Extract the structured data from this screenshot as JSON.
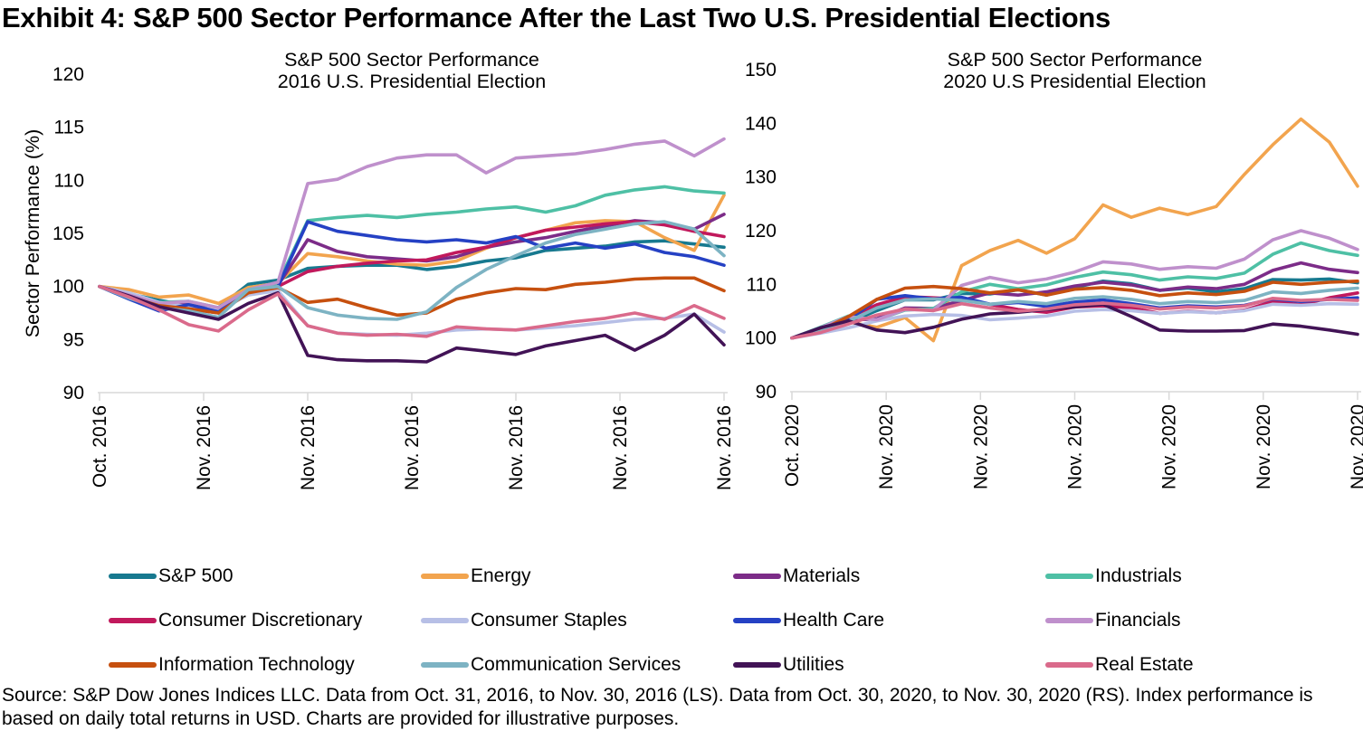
{
  "title": "Exhibit 4: S&P 500 Sector Performance After the Last Two U.S. Presidential Elections",
  "source_note": "Source: S&P Dow Jones Indices LLC. Data from Oct. 31, 2016, to Nov. 30, 2016 (LS). Data from Oct. 30, 2020, to Nov. 30, 2020 (RS). Index performance is based on daily total returns in USD. Charts are provided for illustrative purposes.",
  "legend": {
    "items": [
      {
        "label": "S&P 500",
        "color": "#17798f"
      },
      {
        "label": "Energy",
        "color": "#f2a44e"
      },
      {
        "label": "Materials",
        "color": "#7c2c88"
      },
      {
        "label": "Industrials",
        "color": "#4ec0a5"
      },
      {
        "label": "Consumer Discretionary",
        "color": "#c1195c"
      },
      {
        "label": "Consumer Staples",
        "color": "#b7bfe6"
      },
      {
        "label": "Health Care",
        "color": "#2541c4"
      },
      {
        "label": "Financials",
        "color": "#bf90cc"
      },
      {
        "label": "Information Technology",
        "color": "#c6500f"
      },
      {
        "label": "Communication Services",
        "color": "#7db3c3"
      },
      {
        "label": "Utilities",
        "color": "#421356"
      },
      {
        "label": "Real Estate",
        "color": "#da6a8b"
      }
    ]
  },
  "chart_data": [
    {
      "type": "line",
      "title": "S&P 500 Sector Performance",
      "subtitle": "2016 U.S. Presidential Election",
      "ylabel": "Sector Performance (%)",
      "ylim": [
        90,
        120
      ],
      "y_ticks": [
        120,
        115,
        110,
        105,
        100,
        95,
        90
      ],
      "x_tick_labels": [
        "Oct. 2016",
        "Nov. 2016",
        "Nov. 2016",
        "Nov. 2016",
        "Nov. 2016",
        "Nov. 2016",
        "Nov. 2016"
      ],
      "grid": false,
      "series": [
        {
          "name": "S&P 500",
          "color": "#17798f",
          "values": [
            100,
            99.3,
            98.7,
            98.2,
            98.0,
            100.2,
            100.6,
            101.7,
            101.9,
            102.0,
            102.0,
            101.6,
            101.9,
            102.4,
            102.7,
            103.4,
            103.6,
            103.8,
            104.2,
            104.3,
            104.0,
            103.7
          ]
        },
        {
          "name": "Energy",
          "color": "#f2a44e",
          "values": [
            100,
            99.7,
            99.0,
            99.2,
            98.4,
            99.9,
            100.3,
            103.1,
            102.8,
            102.4,
            102.1,
            102.0,
            102.4,
            103.6,
            104.6,
            105.3,
            106.0,
            106.2,
            106.1,
            104.6,
            103.4,
            108.6
          ]
        },
        {
          "name": "Materials",
          "color": "#7c2c88",
          "values": [
            100,
            99.0,
            98.2,
            98.4,
            97.8,
            99.4,
            100.1,
            104.4,
            103.3,
            102.8,
            102.6,
            102.4,
            102.8,
            103.7,
            104.2,
            104.6,
            105.2,
            105.7,
            106.2,
            106.0,
            105.4,
            106.8
          ]
        },
        {
          "name": "Industrials",
          "color": "#4ec0a5",
          "values": [
            100,
            99.2,
            98.5,
            98.6,
            98.0,
            99.7,
            100.3,
            106.2,
            106.5,
            106.7,
            106.5,
            106.8,
            107.0,
            107.3,
            107.5,
            107.0,
            107.6,
            108.6,
            109.1,
            109.4,
            109.0,
            108.8
          ]
        },
        {
          "name": "Consumer Discretionary",
          "color": "#c1195c",
          "values": [
            100,
            99.2,
            98.3,
            97.9,
            97.5,
            99.4,
            100.0,
            101.4,
            101.9,
            102.2,
            102.4,
            102.5,
            103.2,
            103.7,
            104.6,
            105.3,
            105.6,
            105.9,
            106.1,
            105.8,
            105.2,
            104.7
          ]
        },
        {
          "name": "Consumer Staples",
          "color": "#b7bfe6",
          "values": [
            100,
            99.4,
            98.5,
            98.1,
            97.8,
            99.2,
            99.6,
            96.3,
            95.6,
            95.5,
            95.4,
            95.6,
            95.9,
            96.0,
            95.9,
            96.1,
            96.3,
            96.6,
            96.9,
            97.0,
            97.4,
            95.7
          ]
        },
        {
          "name": "Health Care",
          "color": "#2541c4",
          "values": [
            100,
            98.8,
            97.7,
            98.3,
            97.6,
            99.6,
            100.0,
            106.1,
            105.2,
            104.8,
            104.4,
            104.2,
            104.4,
            104.1,
            104.7,
            103.6,
            104.1,
            103.6,
            104.0,
            103.2,
            102.8,
            102.0
          ]
        },
        {
          "name": "Financials",
          "color": "#bf90cc",
          "values": [
            100,
            99.2,
            98.4,
            98.6,
            98.0,
            99.7,
            100.4,
            109.7,
            110.1,
            111.3,
            112.1,
            112.4,
            112.4,
            110.7,
            112.1,
            112.3,
            112.5,
            112.9,
            113.4,
            113.7,
            112.3,
            113.9
          ]
        },
        {
          "name": "Information Technology",
          "color": "#c6500f",
          "values": [
            100,
            99.0,
            98.2,
            97.9,
            97.5,
            99.4,
            99.9,
            98.5,
            98.8,
            98.0,
            97.3,
            97.5,
            98.8,
            99.4,
            99.8,
            99.7,
            100.2,
            100.4,
            100.7,
            100.8,
            100.8,
            99.6
          ]
        },
        {
          "name": "Communication Services",
          "color": "#7db3c3",
          "values": [
            100,
            98.9,
            98.0,
            97.7,
            97.1,
            99.7,
            100.0,
            98.0,
            97.3,
            97.0,
            96.9,
            97.6,
            99.9,
            101.6,
            102.9,
            104.1,
            104.9,
            105.4,
            105.9,
            106.1,
            105.4,
            102.9
          ]
        },
        {
          "name": "Utilities",
          "color": "#421356",
          "values": [
            100,
            99.1,
            98.1,
            97.5,
            96.9,
            98.4,
            99.4,
            93.5,
            93.1,
            93.0,
            93.0,
            92.9,
            94.2,
            93.9,
            93.6,
            94.4,
            94.9,
            95.4,
            94.0,
            95.4,
            97.4,
            94.5
          ]
        },
        {
          "name": "Real Estate",
          "color": "#da6a8b",
          "values": [
            100,
            99.0,
            97.8,
            96.4,
            95.8,
            97.8,
            99.3,
            96.3,
            95.6,
            95.4,
            95.5,
            95.3,
            96.2,
            96.0,
            95.9,
            96.3,
            96.7,
            97.0,
            97.5,
            96.9,
            98.2,
            97.0
          ]
        }
      ]
    },
    {
      "type": "line",
      "title": "S&P 500 Sector Performance",
      "subtitle": "2020 U.S Presidential Election",
      "ylabel": "",
      "ylim": [
        90,
        150
      ],
      "y_ticks": [
        150,
        140,
        130,
        120,
        110,
        100,
        90
      ],
      "x_tick_labels": [
        "Oct. 2020",
        "Nov. 2020",
        "Nov. 2020",
        "Nov. 2020",
        "Nov. 2020",
        "Nov. 2020",
        "Nov. 2020"
      ],
      "grid": false,
      "series": [
        {
          "name": "S&P 500",
          "color": "#17798f",
          "values": [
            100,
            101.2,
            102.9,
            105.1,
            107.1,
            107.1,
            108.3,
            108.2,
            109.0,
            108.0,
            109.4,
            110.6,
            110.1,
            108.9,
            109.3,
            108.6,
            109.2,
            110.9,
            110.8,
            111.0,
            110.3
          ]
        },
        {
          "name": "Energy",
          "color": "#f2a44e",
          "values": [
            100,
            101.3,
            103.0,
            102.0,
            103.8,
            99.5,
            113.5,
            116.3,
            118.2,
            115.8,
            118.5,
            124.8,
            122.5,
            124.2,
            123.0,
            124.5,
            130.5,
            136.0,
            140.8,
            136.5,
            128.3
          ]
        },
        {
          "name": "Materials",
          "color": "#7c2c88",
          "values": [
            100,
            101.7,
            103.3,
            103.6,
            105.6,
            105.5,
            107.0,
            108.4,
            108.0,
            108.6,
            109.7,
            110.4,
            109.9,
            108.9,
            109.5,
            109.2,
            110.0,
            112.6,
            114.0,
            112.8,
            112.2
          ]
        },
        {
          "name": "Industrials",
          "color": "#4ec0a5",
          "values": [
            100,
            102.0,
            104.1,
            103.4,
            105.2,
            105.5,
            108.6,
            110.0,
            109.2,
            109.9,
            111.3,
            112.3,
            111.8,
            110.8,
            111.4,
            111.1,
            112.1,
            115.6,
            117.7,
            116.3,
            115.4
          ]
        },
        {
          "name": "Consumer Discretionary",
          "color": "#c1195c",
          "values": [
            100,
            101.6,
            103.8,
            106.2,
            107.7,
            107.5,
            107.2,
            106.3,
            105.3,
            104.8,
            105.8,
            106.0,
            105.6,
            104.6,
            105.0,
            104.7,
            105.2,
            106.8,
            106.2,
            107.5,
            108.4
          ]
        },
        {
          "name": "Consumer Staples",
          "color": "#b7bfe6",
          "values": [
            100,
            100.9,
            101.9,
            103.2,
            104.1,
            104.4,
            104.2,
            103.4,
            103.7,
            104.1,
            105.0,
            105.3,
            105.1,
            104.6,
            104.9,
            104.7,
            105.1,
            106.3,
            106.1,
            106.4,
            106.3
          ]
        },
        {
          "name": "Health Care",
          "color": "#2541c4",
          "values": [
            100,
            101.4,
            103.3,
            107.2,
            107.9,
            107.3,
            107.6,
            106.3,
            106.6,
            105.9,
            106.7,
            107.1,
            106.4,
            105.6,
            106.0,
            105.8,
            106.1,
            107.3,
            106.8,
            107.2,
            107.5
          ]
        },
        {
          "name": "Financials",
          "color": "#bf90cc",
          "values": [
            100,
            101.9,
            104.0,
            103.4,
            105.3,
            105.2,
            109.8,
            111.3,
            110.3,
            111.0,
            112.3,
            114.2,
            113.8,
            112.8,
            113.3,
            113.0,
            114.7,
            118.3,
            120.0,
            118.6,
            116.5
          ]
        },
        {
          "name": "Information Technology",
          "color": "#c6500f",
          "values": [
            100,
            101.4,
            104.0,
            107.2,
            109.3,
            109.6,
            109.2,
            108.4,
            109.0,
            108.0,
            109.1,
            109.4,
            108.9,
            107.9,
            108.4,
            108.1,
            108.7,
            110.4,
            110.0,
            110.4,
            110.6
          ]
        },
        {
          "name": "Communication Services",
          "color": "#7db3c3",
          "values": [
            100,
            101.2,
            103.1,
            105.6,
            107.1,
            107.3,
            107.0,
            106.3,
            106.8,
            106.4,
            107.4,
            107.7,
            107.2,
            106.4,
            106.8,
            106.6,
            107.0,
            108.6,
            108.3,
            108.9,
            109.3
          ]
        },
        {
          "name": "Utilities",
          "color": "#421356",
          "values": [
            100,
            101.9,
            103.2,
            101.5,
            101.0,
            102.0,
            103.5,
            104.5,
            104.8,
            105.3,
            105.8,
            106.3,
            104.0,
            101.5,
            101.3,
            101.3,
            101.4,
            102.6,
            102.2,
            101.5,
            100.7
          ]
        },
        {
          "name": "Real Estate",
          "color": "#da6a8b",
          "values": [
            100,
            101.0,
            102.6,
            104.3,
            105.4,
            105.1,
            106.4,
            105.6,
            105.0,
            105.4,
            106.2,
            106.5,
            106.1,
            105.4,
            105.8,
            105.6,
            106.0,
            107.4,
            107.0,
            107.2,
            107.0
          ]
        }
      ]
    }
  ]
}
